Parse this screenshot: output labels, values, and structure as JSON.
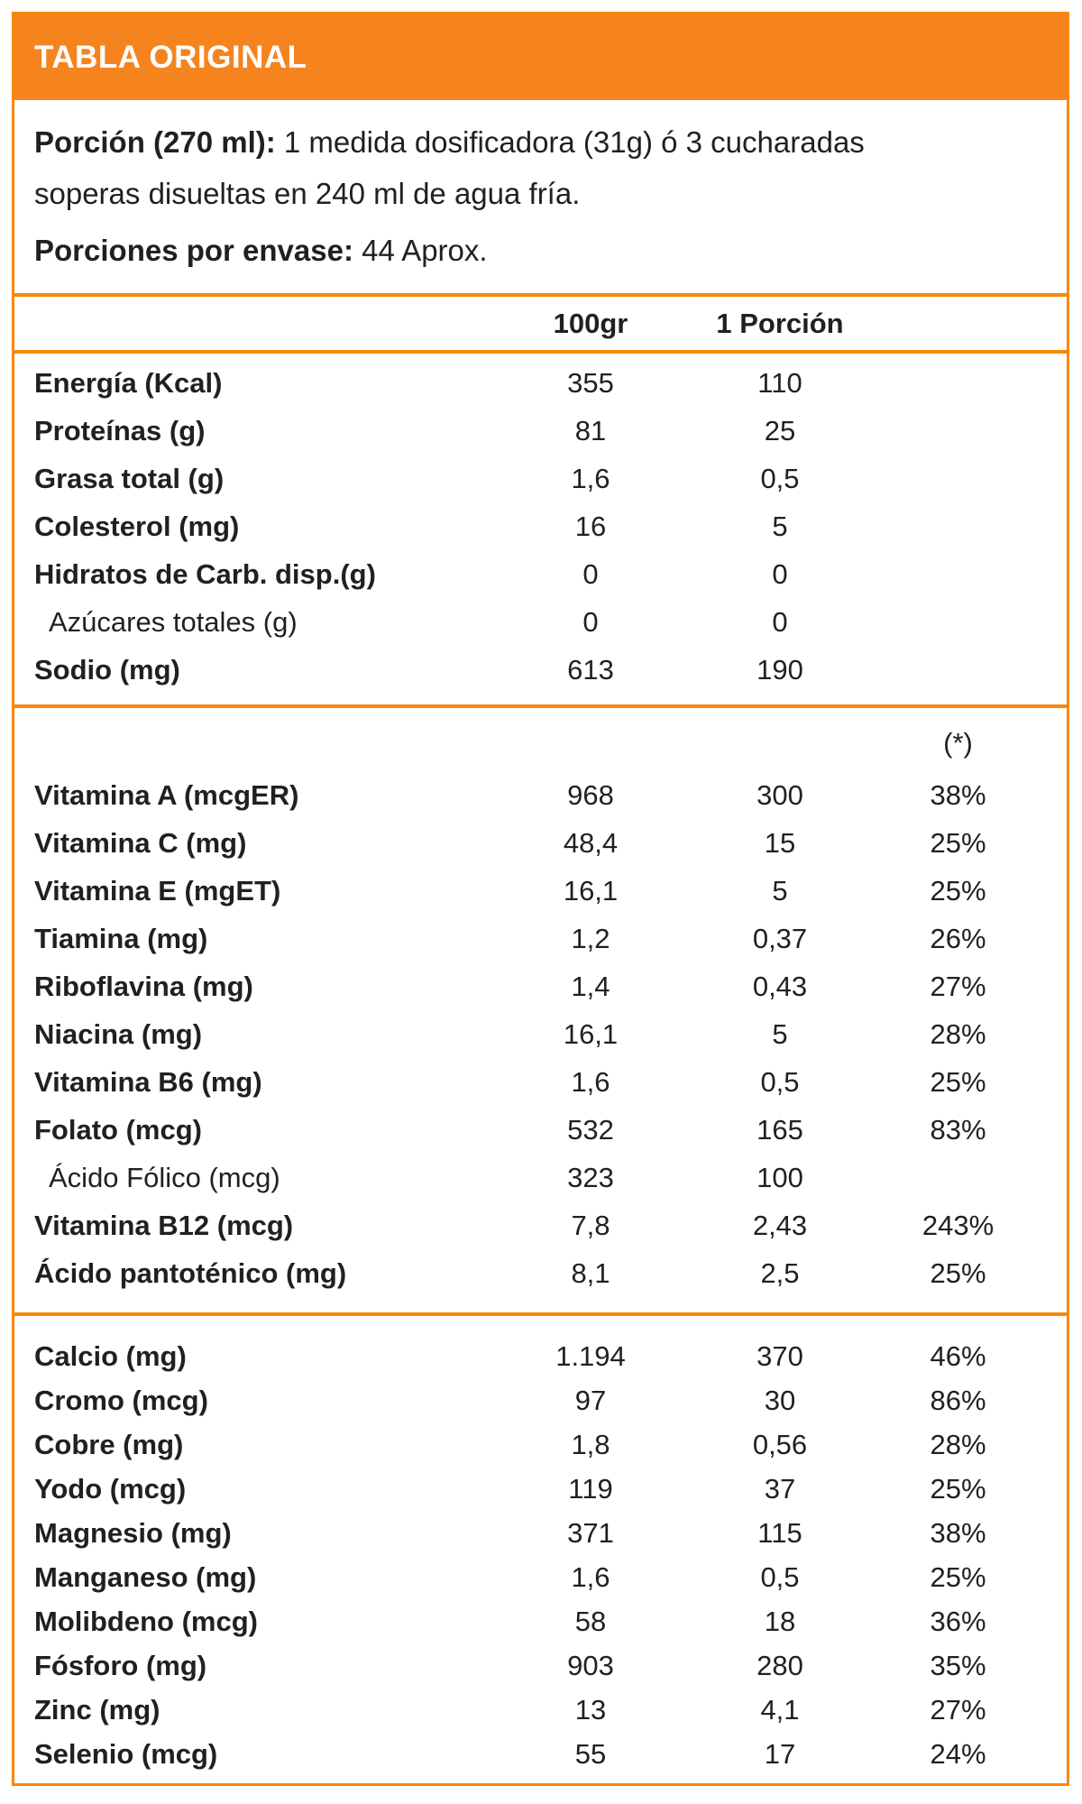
{
  "header": {
    "title": "TABLA ORIGINAL"
  },
  "intro": {
    "serving_label": "Porción (270 ml):",
    "serving_text_line1": "1 medida dosificadora (31g) ó 3 cucharadas",
    "serving_text_line2": "soperas disueltas en 240 ml de agua fría.",
    "servings_label": "Porciones por envase:",
    "servings_value": "44 Aprox."
  },
  "columns": {
    "per_100g": "100gr",
    "per_portion": "1 Porción",
    "daily_value_mark": "(*)"
  },
  "colors": {
    "band_orange": "#F5841F",
    "line_orange": "#F8880A",
    "text": "#231F20",
    "title_text": "#FFFFFF"
  },
  "sections": [
    {
      "rows": [
        {
          "label": "Energía (Kcal)",
          "per100": "355",
          "portion": "110",
          "dv": "",
          "bold": true,
          "indent": false
        },
        {
          "label": "Proteínas (g)",
          "per100": "81",
          "portion": "25",
          "dv": "",
          "bold": true,
          "indent": false
        },
        {
          "label": "Grasa total (g)",
          "per100": "1,6",
          "portion": "0,5",
          "dv": "",
          "bold": true,
          "indent": false
        },
        {
          "label": "Colesterol (mg)",
          "per100": "16",
          "portion": "5",
          "dv": "",
          "bold": true,
          "indent": false
        },
        {
          "label": "Hidratos de Carb. disp.(g)",
          "per100": "0",
          "portion": "0",
          "dv": "",
          "bold": true,
          "indent": false
        },
        {
          "label": "Azúcares totales (g)",
          "per100": "0",
          "portion": "0",
          "dv": "",
          "bold": false,
          "indent": true
        },
        {
          "label": "Sodio (mg)",
          "per100": "613",
          "portion": "190",
          "dv": "",
          "bold": true,
          "indent": false
        }
      ]
    },
    {
      "rows": [
        {
          "label": "Vitamina A (mcgER)",
          "per100": "968",
          "portion": "300",
          "dv": "38%",
          "bold": true,
          "indent": false
        },
        {
          "label": "Vitamina C (mg)",
          "per100": "48,4",
          "portion": "15",
          "dv": "25%",
          "bold": true,
          "indent": false
        },
        {
          "label": "Vitamina E (mgET)",
          "per100": "16,1",
          "portion": "5",
          "dv": "25%",
          "bold": true,
          "indent": false
        },
        {
          "label": "Tiamina (mg)",
          "per100": "1,2",
          "portion": "0,37",
          "dv": "26%",
          "bold": true,
          "indent": false
        },
        {
          "label": "Riboflavina (mg)",
          "per100": "1,4",
          "portion": "0,43",
          "dv": "27%",
          "bold": true,
          "indent": false
        },
        {
          "label": "Niacina (mg)",
          "per100": "16,1",
          "portion": "5",
          "dv": "28%",
          "bold": true,
          "indent": false
        },
        {
          "label": "Vitamina B6 (mg)",
          "per100": "1,6",
          "portion": "0,5",
          "dv": "25%",
          "bold": true,
          "indent": false
        },
        {
          "label": "Folato (mcg)",
          "per100": "532",
          "portion": "165",
          "dv": "83%",
          "bold": true,
          "indent": false
        },
        {
          "label": "Ácido Fólico (mcg)",
          "per100": "323",
          "portion": "100",
          "dv": "",
          "bold": false,
          "indent": true
        },
        {
          "label": "Vitamina B12 (mcg)",
          "per100": "7,8",
          "portion": "2,43",
          "dv": "243%",
          "bold": true,
          "indent": false
        },
        {
          "label": "Ácido pantoténico (mg)",
          "per100": "8,1",
          "portion": "2,5",
          "dv": "25%",
          "bold": true,
          "indent": false
        }
      ]
    },
    {
      "rows": [
        {
          "label": "Calcio (mg)",
          "per100": "1.194",
          "portion": "370",
          "dv": "46%",
          "bold": true,
          "indent": false
        },
        {
          "label": "Cromo (mcg)",
          "per100": "97",
          "portion": "30",
          "dv": "86%",
          "bold": true,
          "indent": false
        },
        {
          "label": "Cobre (mg)",
          "per100": "1,8",
          "portion": "0,56",
          "dv": "28%",
          "bold": true,
          "indent": false
        },
        {
          "label": "Yodo (mcg)",
          "per100": "119",
          "portion": "37",
          "dv": "25%",
          "bold": true,
          "indent": false
        },
        {
          "label": "Magnesio (mg)",
          "per100": "371",
          "portion": "115",
          "dv": "38%",
          "bold": true,
          "indent": false
        },
        {
          "label": "Manganeso (mg)",
          "per100": "1,6",
          "portion": "0,5",
          "dv": "25%",
          "bold": true,
          "indent": false
        },
        {
          "label": "Molibdeno (mcg)",
          "per100": "58",
          "portion": "18",
          "dv": "36%",
          "bold": true,
          "indent": false
        },
        {
          "label": "Fósforo (mg)",
          "per100": "903",
          "portion": "280",
          "dv": "35%",
          "bold": true,
          "indent": false
        },
        {
          "label": "Zinc (mg)",
          "per100": "13",
          "portion": "4,1",
          "dv": "27%",
          "bold": true,
          "indent": false
        },
        {
          "label": "Selenio (mcg)",
          "per100": "55",
          "portion": "17",
          "dv": "24%",
          "bold": true,
          "indent": false
        }
      ]
    }
  ]
}
